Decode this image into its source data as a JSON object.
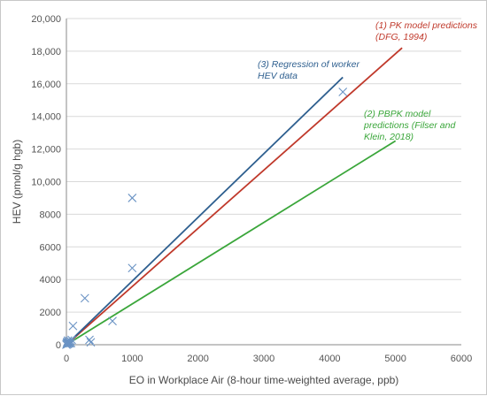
{
  "chart_data": {
    "type": "scatter",
    "xlabel": "EO in Workplace Air (8-hour time-weighted average, ppb)",
    "ylabel": "HEV (pmol/g hgb)",
    "xlim": [
      0,
      6000
    ],
    "ylim": [
      0,
      20000
    ],
    "x_ticks": [
      "0",
      "1000",
      "2000",
      "3000",
      "4000",
      "5000",
      "6000"
    ],
    "y_ticks": [
      "0",
      "2000",
      "4000",
      "6000",
      "8000",
      "10,000",
      "12,000",
      "14,000",
      "16,000",
      "18,000",
      "20,000"
    ],
    "grid": "horizontal",
    "scatter": {
      "marker": "x",
      "color": "#6a93c4",
      "points": [
        {
          "x": 0,
          "y": 0
        },
        {
          "x": 5,
          "y": 60
        },
        {
          "x": 10,
          "y": 120
        },
        {
          "x": 15,
          "y": 180
        },
        {
          "x": 20,
          "y": 40
        },
        {
          "x": 25,
          "y": 260
        },
        {
          "x": 30,
          "y": 90
        },
        {
          "x": 40,
          "y": 150
        },
        {
          "x": 50,
          "y": 80
        },
        {
          "x": 60,
          "y": 240
        },
        {
          "x": 70,
          "y": 100
        },
        {
          "x": 80,
          "y": 300
        },
        {
          "x": 100,
          "y": 1150
        },
        {
          "x": 280,
          "y": 2850
        },
        {
          "x": 350,
          "y": 300
        },
        {
          "x": 370,
          "y": 150
        },
        {
          "x": 700,
          "y": 1450
        },
        {
          "x": 1000,
          "y": 4700
        },
        {
          "x": 1000,
          "y": 9000
        },
        {
          "x": 4200,
          "y": 15500
        }
      ]
    },
    "series": [
      {
        "name": "(1) PK model predictions (DFG, 1994)",
        "color": "#c0392b",
        "x": [
          0,
          5100
        ],
        "y": [
          0,
          18200
        ]
      },
      {
        "name": "(3) Regression of worker HEV data",
        "color": "#2e5f8f",
        "x": [
          0,
          4200
        ],
        "y": [
          0,
          16400
        ]
      },
      {
        "name": "(2) PBPK model predictions (Filser and Klein, 2018)",
        "color": "#3aa63a",
        "x": [
          0,
          5000
        ],
        "y": [
          0,
          12500
        ]
      }
    ],
    "annotations": [
      {
        "lines": [
          "(1) PK model predictions",
          "(DFG, 1994)"
        ],
        "color": "#c0392b"
      },
      {
        "lines": [
          "(3) Regression of worker",
          "HEV data"
        ],
        "color": "#2e5f8f"
      },
      {
        "lines": [
          "(2) PBPK model",
          "predictions (Filser and",
          "Klein, 2018)"
        ],
        "color": "#3aa63a"
      }
    ]
  }
}
